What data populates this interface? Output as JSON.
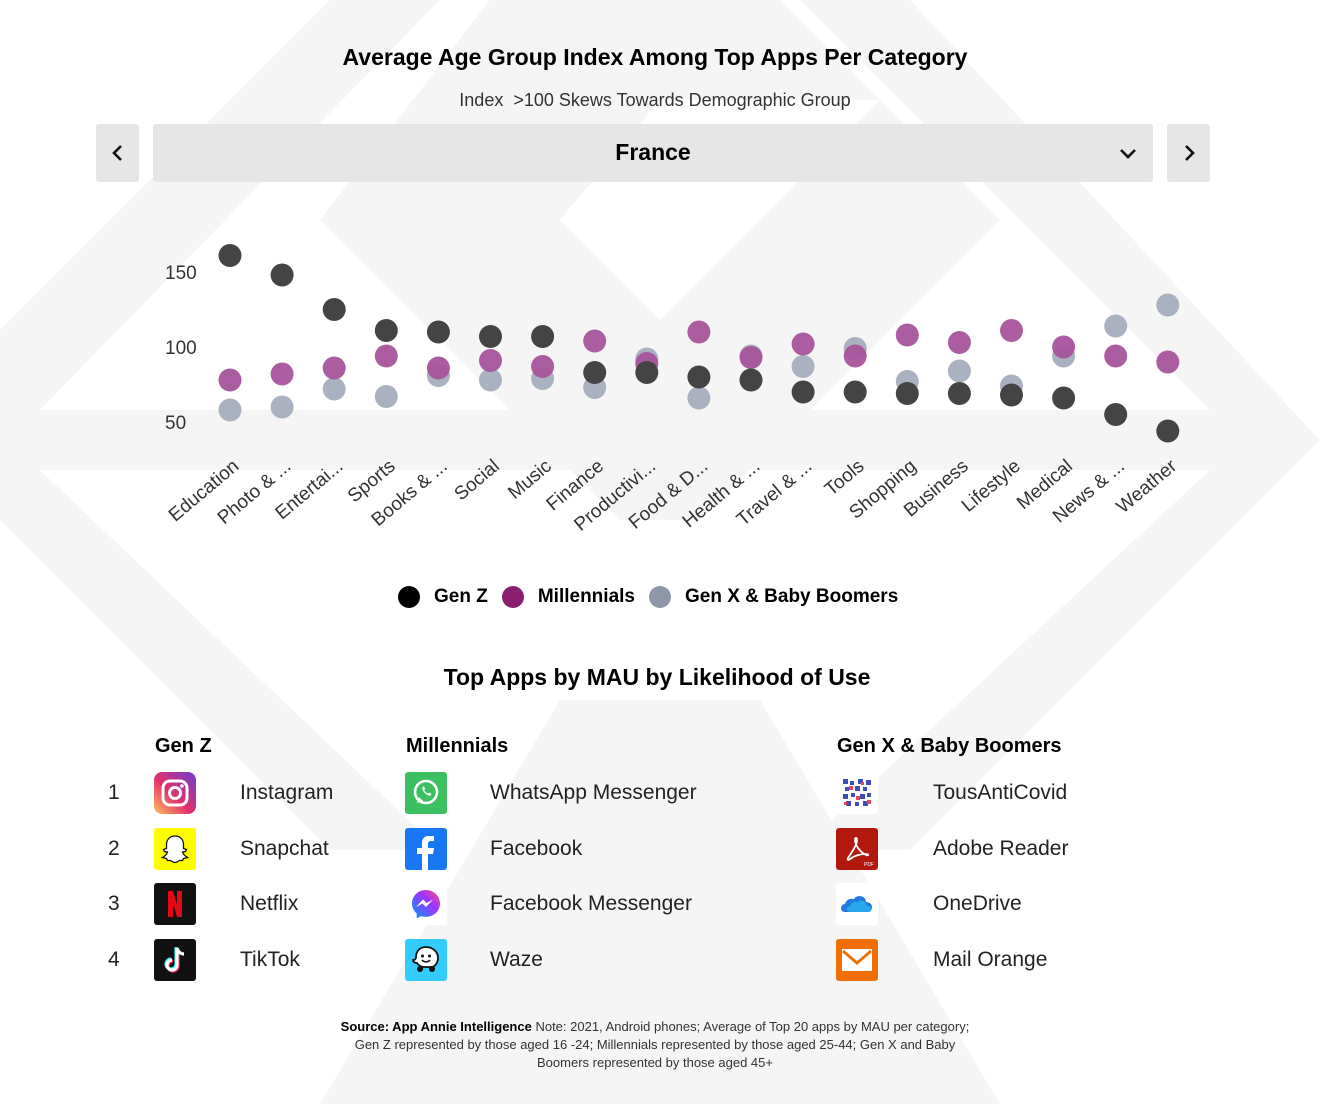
{
  "header": {
    "title": "Average Age Group Index Among Top Apps Per Category",
    "subtitle_left": "Index",
    "subtitle_right": ">100 Skews Towards Demographic Group"
  },
  "selector": {
    "value": "France",
    "prev_icon": "chevron-left-icon",
    "next_icon": "chevron-right-icon",
    "dropdown_icon": "chevron-down-icon"
  },
  "chart_data": {
    "type": "scatter",
    "title": "Average Age Group Index Among Top Apps Per Category",
    "subtitle": "Index  >100 Skews Towards Demographic Group",
    "categories": [
      "Education",
      "Photo & ...",
      "Entertai...",
      "Sports",
      "Books & ...",
      "Social",
      "Music",
      "Finance",
      "Productivi...",
      "Food & D...",
      "Health & ...",
      "Travel & ...",
      "Tools",
      "Shopping",
      "Business",
      "Lifestyle",
      "Medical",
      "News & ...",
      "Weather"
    ],
    "yticks": [
      150,
      100,
      50
    ],
    "ylim": [
      35,
      170
    ],
    "series": [
      {
        "name": "Gen Z",
        "color": "#444444",
        "values": [
          161,
          148,
          125,
          111,
          110,
          107,
          107,
          83,
          83,
          80,
          78,
          70,
          70,
          69,
          69,
          68,
          66,
          55,
          44
        ]
      },
      {
        "name": "Millennials",
        "color": "#a8549c",
        "values": [
          78,
          82,
          86,
          94,
          86,
          91,
          87,
          104,
          89,
          110,
          93,
          102,
          94,
          108,
          103,
          111,
          100,
          94,
          90
        ]
      },
      {
        "name": "Gen X & Baby Boomers",
        "color": "#a5adbd",
        "values": [
          58,
          60,
          72,
          67,
          81,
          78,
          79,
          73,
          92,
          66,
          94,
          87,
          99,
          77,
          84,
          74,
          94,
          114,
          128
        ]
      }
    ],
    "grid": false,
    "legend_position": "bottom"
  },
  "legend": {
    "items": [
      {
        "label": "Gen Z",
        "color": "#000000"
      },
      {
        "label": "Millennials",
        "color": "#8a1f71"
      },
      {
        "label": "Gen X & Baby Boomers",
        "color": "#8e97a8"
      }
    ]
  },
  "top_apps": {
    "title": "Top Apps by MAU by Likelihood of Use",
    "ranks": [
      "1",
      "2",
      "3",
      "4"
    ],
    "columns": [
      {
        "heading": "Gen Z",
        "apps": [
          {
            "name": "Instagram",
            "icon": "instagram-icon"
          },
          {
            "name": "Snapchat",
            "icon": "snapchat-icon"
          },
          {
            "name": "Netflix",
            "icon": "netflix-icon"
          },
          {
            "name": "TikTok",
            "icon": "tiktok-icon"
          }
        ]
      },
      {
        "heading": "Millennials",
        "apps": [
          {
            "name": "WhatsApp Messenger",
            "icon": "whatsapp-icon"
          },
          {
            "name": "Facebook",
            "icon": "facebook-icon"
          },
          {
            "name": "Facebook Messenger",
            "icon": "messenger-icon"
          },
          {
            "name": "Waze",
            "icon": "waze-icon"
          }
        ]
      },
      {
        "heading": "Gen X & Baby Boomers",
        "apps": [
          {
            "name": "TousAntiCovid",
            "icon": "tousanticovid-icon"
          },
          {
            "name": "Adobe Reader",
            "icon": "adobe-reader-icon"
          },
          {
            "name": "OneDrive",
            "icon": "onedrive-icon"
          },
          {
            "name": "Mail Orange",
            "icon": "mail-orange-icon"
          }
        ]
      }
    ]
  },
  "footnote": {
    "source": "Source: App Annie Intelligence",
    "note": " Note: 2021, Android phones; Average of Top 20 apps by MAU per category; Gen Z represented by those aged 16 -24; Millennials represented by those aged 25-44; Gen X and Baby Boomers represented by those aged 45+"
  }
}
